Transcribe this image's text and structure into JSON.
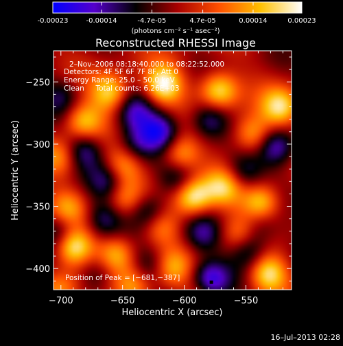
{
  "colorbar": {
    "tick_labels": [
      "-0.00023",
      "-0.00014",
      "-4.7e-05",
      "4.7e-05",
      "0.00014",
      "0.00023"
    ],
    "tick_values": [
      -0.00023,
      -0.00014,
      -4.7e-05,
      4.7e-05,
      0.00014,
      0.00023
    ],
    "range": [
      -0.00023,
      0.00023
    ],
    "unit_label": "(photons cm⁻² s⁻¹ asec⁻²)",
    "colors": [
      "#0000ff",
      "#5500cc",
      "#000000",
      "#a80000",
      "#ff5000",
      "#ffc000",
      "#ffffff"
    ]
  },
  "chart_data": {
    "type": "heatmap",
    "title": "Reconstructed RHESSI Image",
    "xlabel": "Heliocentric X (arcsec)",
    "ylabel": "Heliocentric Y (arcsec)",
    "xlim": [
      -706,
      -513
    ],
    "ylim": [
      -417,
      -225
    ],
    "x_ticks": [
      -700,
      -650,
      -600,
      -550
    ],
    "y_ticks": [
      -400,
      -350,
      -300,
      -250
    ],
    "x_tick_labels": [
      "−700",
      "−650",
      "−600",
      "−550"
    ],
    "y_tick_labels": [
      "−400",
      "−350",
      "−300",
      "−250"
    ],
    "annotations": {
      "time_range": "2–Nov–2006 08:18:40.000 to 08:22:52.000",
      "detectors": "Detectors: 4F 5F 6F 7F 8F, Att 0",
      "energy_range": "Energy Range: 25.0 – 50.0 keV",
      "method": "Clean     Total counts: 6.26E+03",
      "peak": "Position of Peak = [−681,−387]"
    },
    "peak": [
      -681,
      -387
    ],
    "grid": false,
    "sources": [
      {
        "x": -617,
        "y": -252,
        "amp": 1.0
      },
      {
        "x": -572,
        "y": -257,
        "amp": 0.9
      },
      {
        "x": -660,
        "y": -258,
        "amp": 0.8
      },
      {
        "x": -522,
        "y": -270,
        "amp": 0.8
      },
      {
        "x": -545,
        "y": -292,
        "amp": 0.7
      },
      {
        "x": -682,
        "y": -282,
        "amp": 0.75
      },
      {
        "x": -603,
        "y": -308,
        "amp": 0.7
      },
      {
        "x": -650,
        "y": -318,
        "amp": 0.65
      },
      {
        "x": -700,
        "y": -310,
        "amp": 0.5
      },
      {
        "x": -568,
        "y": -335,
        "amp": 0.7
      },
      {
        "x": -593,
        "y": -342,
        "amp": 1.0
      },
      {
        "x": -650,
        "y": -342,
        "amp": 0.55
      },
      {
        "x": -538,
        "y": -347,
        "amp": 0.85
      },
      {
        "x": -695,
        "y": -352,
        "amp": 0.55
      },
      {
        "x": -620,
        "y": -365,
        "amp": 0.6
      },
      {
        "x": -555,
        "y": -372,
        "amp": 0.5
      },
      {
        "x": -690,
        "y": -382,
        "amp": 1.0
      },
      {
        "x": -655,
        "y": -388,
        "amp": 0.7
      },
      {
        "x": -610,
        "y": -400,
        "amp": 0.55
      },
      {
        "x": -532,
        "y": -404,
        "amp": 0.85
      },
      {
        "x": -700,
        "y": -415,
        "amp": 0.5
      },
      {
        "x": -640,
        "y": -414,
        "amp": 0.55
      },
      {
        "x": -585,
        "y": -418,
        "amp": 0.45
      },
      {
        "x": -620,
        "y": -290,
        "amp": -0.8
      },
      {
        "x": -640,
        "y": -275,
        "amp": -0.6
      },
      {
        "x": -580,
        "y": -280,
        "amp": -0.6
      },
      {
        "x": -525,
        "y": -302,
        "amp": -0.75
      },
      {
        "x": -640,
        "y": -300,
        "amp": -0.5
      },
      {
        "x": -682,
        "y": -305,
        "amp": -0.6
      },
      {
        "x": -700,
        "y": -262,
        "amp": -0.4
      },
      {
        "x": -605,
        "y": -328,
        "amp": -0.5
      },
      {
        "x": -660,
        "y": -330,
        "amp": -0.6
      },
      {
        "x": -552,
        "y": -322,
        "amp": -0.5
      },
      {
        "x": -628,
        "y": -355,
        "amp": -0.7
      },
      {
        "x": -665,
        "y": -360,
        "amp": -0.5
      },
      {
        "x": -700,
        "y": -370,
        "amp": -0.6
      },
      {
        "x": -540,
        "y": -365,
        "amp": -0.4
      },
      {
        "x": -585,
        "y": -372,
        "amp": -0.5
      },
      {
        "x": -548,
        "y": -385,
        "amp": -0.6
      },
      {
        "x": -628,
        "y": -398,
        "amp": -0.4
      },
      {
        "x": -580,
        "y": -410,
        "amp": -1.0
      },
      {
        "x": -670,
        "y": -405,
        "amp": -0.4
      }
    ]
  },
  "footer": {
    "timestamp": "16–Jul–2013 02:28"
  }
}
